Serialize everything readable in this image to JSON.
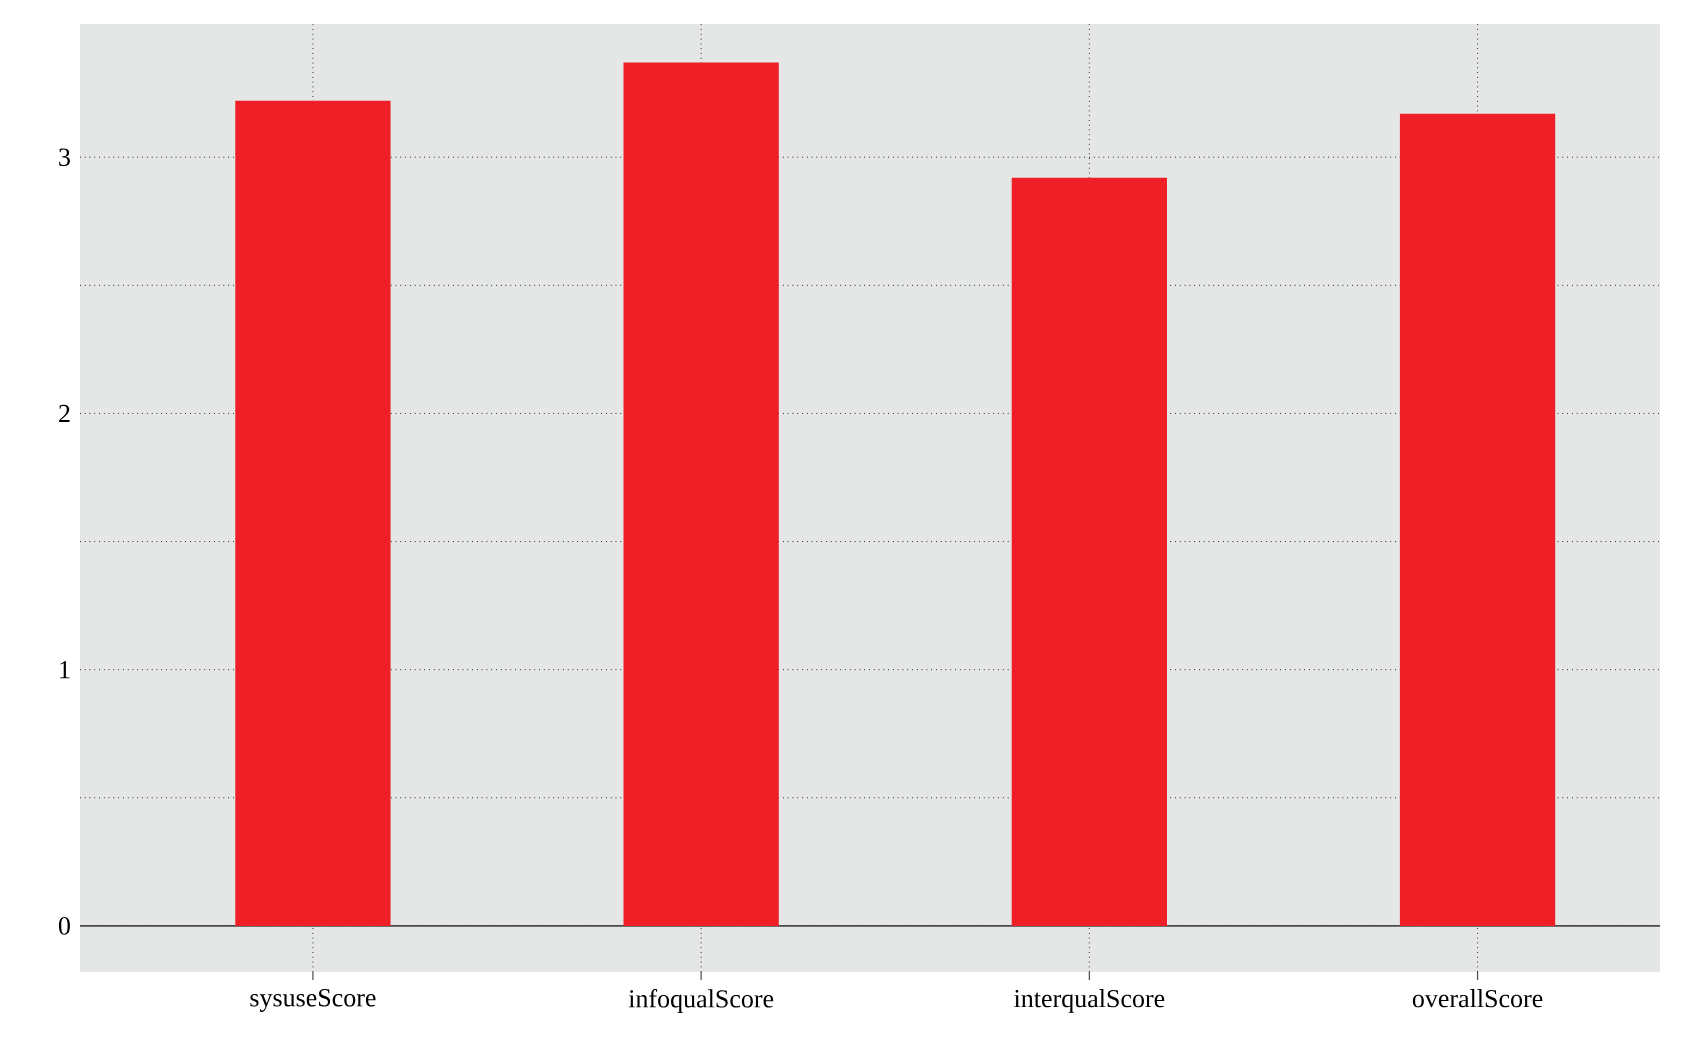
{
  "chart_data": {
    "type": "bar",
    "categories": [
      "sysuseScore",
      "infoqualScore",
      "interqualScore",
      "overallScore"
    ],
    "values": [
      3.22,
      3.37,
      2.92,
      3.17
    ],
    "color": "#ee1f26",
    "ylim": [
      -0.18,
      3.52
    ],
    "yticks": [
      0,
      1,
      2,
      3
    ],
    "grid": true
  }
}
